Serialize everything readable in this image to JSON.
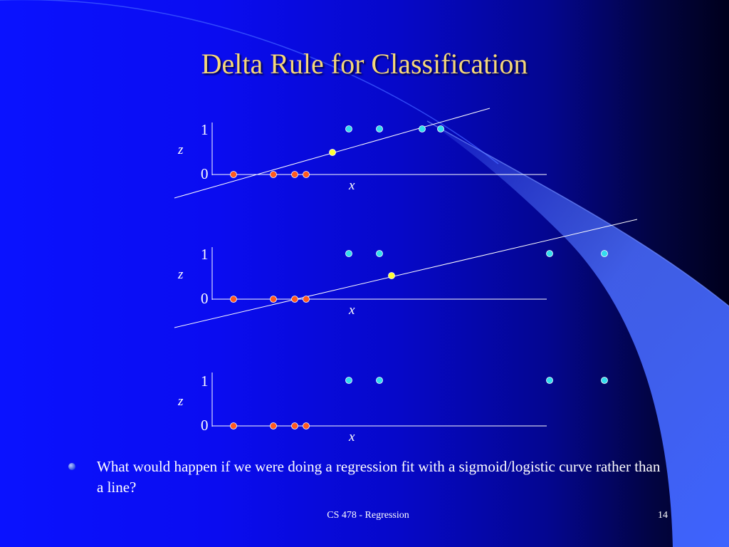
{
  "slide": {
    "title": "Delta Rule for Classification",
    "bullet": "What would happen if we were doing a regression fit with a sigmoid/logistic curve rather than a line?",
    "footer": "CS 478 - Regression",
    "page_number": "14"
  },
  "colors": {
    "title": "#f5d77a",
    "class0_point": "#ff5a1e",
    "class1_point": "#33ddee",
    "predicted_point": "#ffff33",
    "axis": "#ffffff",
    "fit_line": "#ffffff"
  },
  "chart_data": [
    {
      "type": "scatter",
      "xlabel": "x",
      "ylabel": "z",
      "y_ticks": [
        "1",
        "0"
      ],
      "series": [
        {
          "class": "0",
          "color": "#ff5a1e",
          "x": [
            1.0,
            2.9,
            3.9,
            4.5
          ],
          "y": [
            0,
            0,
            0,
            0
          ]
        },
        {
          "class": "1",
          "color": "#33ddee",
          "x": [
            7.1,
            8.6,
            10.6,
            11.5
          ],
          "y": [
            1,
            1,
            1,
            1
          ]
        },
        {
          "class": "predicted",
          "color": "#ffff33",
          "x": [
            6.0
          ],
          "y": [
            0.5
          ]
        }
      ],
      "fit_line": {
        "x": [
          -1.8,
          13.2
        ],
        "y": [
          -0.52,
          1.5
        ]
      }
    },
    {
      "type": "scatter",
      "xlabel": "x",
      "ylabel": "z",
      "y_ticks": [
        "1",
        "0"
      ],
      "series": [
        {
          "class": "0",
          "color": "#ff5a1e",
          "x": [
            1.0,
            2.9,
            3.9,
            4.5
          ],
          "y": [
            0,
            0,
            0,
            0
          ]
        },
        {
          "class": "1",
          "color": "#33ddee",
          "x": [
            7.1,
            8.6,
            16.4,
            19.0
          ],
          "y": [
            1,
            1,
            1,
            1
          ]
        },
        {
          "class": "predicted",
          "color": "#ffff33",
          "x": [
            9.0
          ],
          "y": [
            0.5
          ]
        }
      ],
      "fit_line": {
        "x": [
          -1.8,
          20.5
        ],
        "y": [
          -0.53,
          1.44
        ]
      }
    },
    {
      "type": "scatter",
      "xlabel": "x",
      "ylabel": "z",
      "y_ticks": [
        "1",
        "0"
      ],
      "series": [
        {
          "class": "0",
          "color": "#ff5a1e",
          "x": [
            1.0,
            2.9,
            3.9,
            4.5
          ],
          "y": [
            0,
            0,
            0,
            0
          ]
        },
        {
          "class": "1",
          "color": "#33ddee",
          "x": [
            7.1,
            8.6,
            16.4,
            19.0
          ],
          "y": [
            1,
            1,
            1,
            1
          ]
        }
      ]
    }
  ]
}
